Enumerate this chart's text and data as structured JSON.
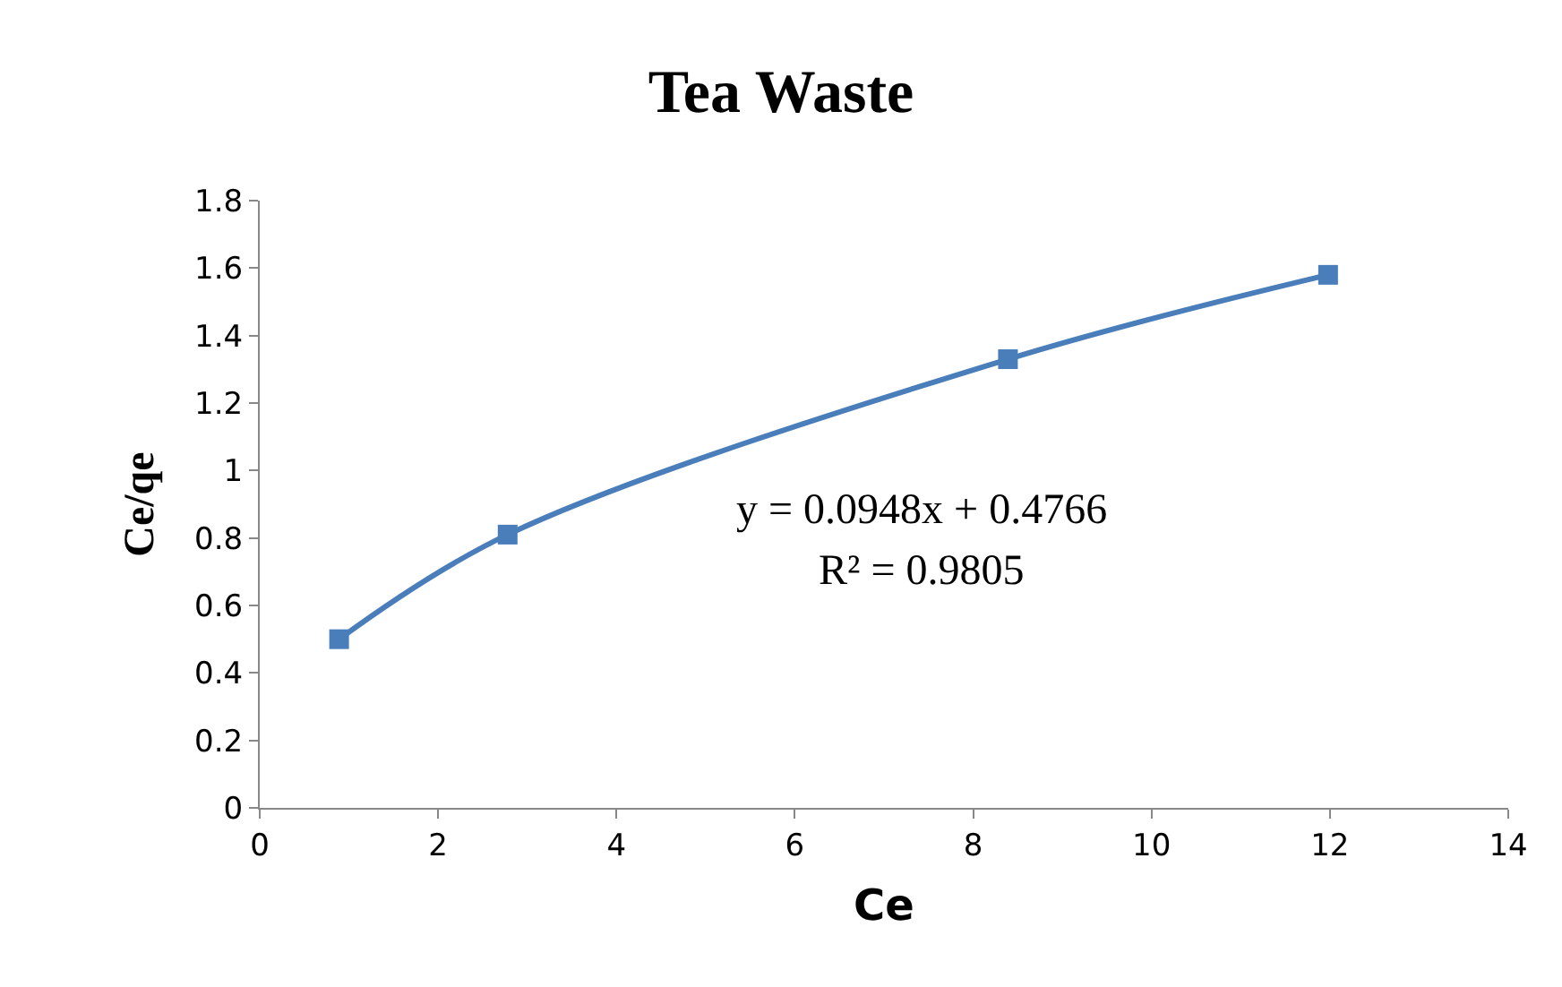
{
  "chart_data": {
    "type": "line",
    "title": "Tea Waste",
    "xlabel": "Ce",
    "ylabel": "Ce/qe",
    "x": [
      0.89,
      2.78,
      8.39,
      11.98
    ],
    "series": [
      {
        "color": "#4a7ebb",
        "values": [
          0.5,
          0.81,
          1.33,
          1.58
        ]
      }
    ],
    "xlim": [
      0,
      14
    ],
    "xticks": [
      0,
      2,
      4,
      6,
      8,
      10,
      12,
      14
    ],
    "ylim": [
      0,
      1.8
    ],
    "yticks": [
      0,
      0.2,
      0.4,
      0.6,
      0.8,
      1,
      1.2,
      1.4,
      1.6,
      1.8
    ],
    "annotations": [
      "y = 0.0948x + 0.4766",
      "R² = 0.9805"
    ],
    "marker": "square",
    "line_style": "solid"
  }
}
